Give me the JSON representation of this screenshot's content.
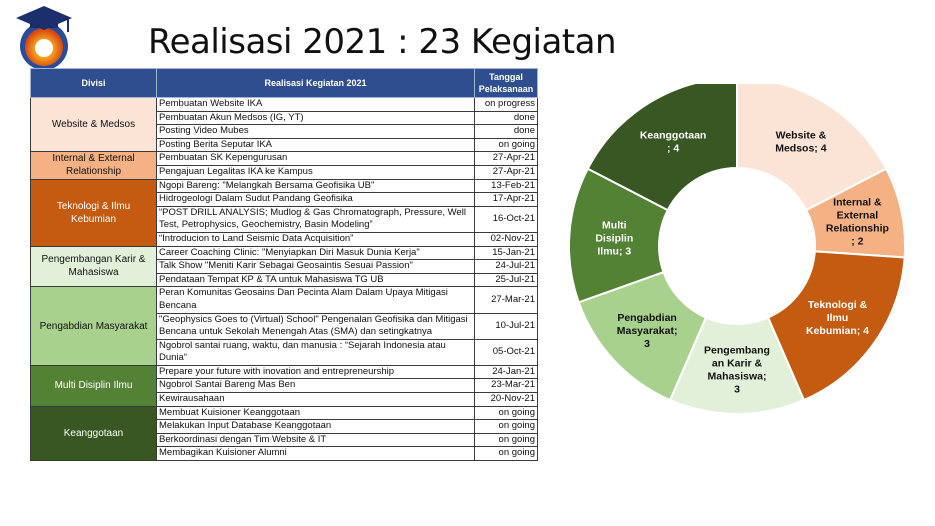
{
  "title": "Realisasi 2021 : 23 Kegiatan",
  "logo": {
    "icon": "graduation-cap-globe-logo"
  },
  "table": {
    "headers": [
      "Divisi",
      "Realisasi Kegiatan 2021",
      "Tanggal Pelaksanaan"
    ],
    "groups": [
      {
        "divisi": "Website & Medsos",
        "color": "#fbe3d6",
        "text_color": "#111111",
        "rows": [
          {
            "activity": "Pembuatan Website IKA",
            "date": "on progress"
          },
          {
            "activity": "Pembuatan Akun Medsos (IG, YT)",
            "date": "done"
          },
          {
            "activity": "Posting Video Mubes",
            "date": "done"
          },
          {
            "activity": "Posting Berita Seputar IKA",
            "date": "on going"
          }
        ]
      },
      {
        "divisi": "Internal & External Relationship",
        "color": "#f4b183",
        "text_color": "#111111",
        "rows": [
          {
            "activity": "Pembuatan SK Kepengurusan",
            "date": "27-Apr-21"
          },
          {
            "activity": "Pengajuan Legalitas IKA ke Kampus",
            "date": "27-Apr-21"
          }
        ]
      },
      {
        "divisi": "Teknologi & Ilmu Kebumian",
        "color": "#c55a11",
        "text_color": "#ffffff",
        "rows": [
          {
            "activity": "Ngopi Bareng: \"Melangkah Bersama Geofisika UB\"",
            "date": "13-Feb-21"
          },
          {
            "activity": "Hidrogeologi Dalam Sudut Pandang Geofisika",
            "date": "17-Apr-21"
          },
          {
            "activity": "“POST DRILL ANALYSIS;  Mudlog & Gas Chromatograph, Pressure, Well Test, Petrophysics, Geochemistry, Basin Modeling”",
            "date": "16-Oct-21"
          },
          {
            "activity": "“Introducion to Land Seismic Data Acquisition”",
            "date": "02-Nov-21"
          }
        ]
      },
      {
        "divisi": "Pengembangan Karir & Mahasiswa",
        "color": "#e2f0d9",
        "text_color": "#111111",
        "rows": [
          {
            "activity": "Career Coaching Clinic: \"Menyiapkan Diri Masuk Dunia Kerja\"",
            "date": "15-Jan-21"
          },
          {
            "activity": "Talk Show \"Meniti Karir Sebagai Geosaintis Sesuai Passion\"",
            "date": "24-Jul-21"
          },
          {
            "activity": "Pendataan Tempat KP & TA untuk Mahasiswa TG UB",
            "date": "25-Jul-21"
          }
        ]
      },
      {
        "divisi": "Pengabdian Masyarakat",
        "color": "#a9d18e",
        "text_color": "#111111",
        "rows": [
          {
            "activity": "Peran Komunitas Geosains Dan Pecinta Alam Dalam Upaya Mitigasi Bencana",
            "date": "27-Mar-21"
          },
          {
            "activity": "\"Geophysics Goes to (Virtual) School\" Pengenalan Geofisika dan Mitigasi Bencana untuk Sekolah Menengah Atas (SMA) dan setingkatnya",
            "date": "10-Jul-21"
          },
          {
            "activity": "Ngobrol santai ruang, waktu, dan manusia : “Sejarah Indonesia atau Dunia“",
            "date": "05-Oct-21"
          }
        ]
      },
      {
        "divisi": "Multi Disiplin Ilmu",
        "color": "#548235",
        "text_color": "#ffffff",
        "rows": [
          {
            "activity": "Prepare your future with inovation and entrepreneurship",
            "date": "24-Jan-21"
          },
          {
            "activity": "Ngobrol Santai Bareng Mas Ben",
            "date": "23-Mar-21"
          },
          {
            "activity": "Kewirausahaan",
            "date": "20-Nov-21"
          }
        ]
      },
      {
        "divisi": "Keanggotaan",
        "color": "#385723",
        "text_color": "#ffffff",
        "rows": [
          {
            "activity": "Membuat Kuisioner Keanggotaan",
            "date": "on going"
          },
          {
            "activity": "Melakukan Input Database Keanggotaan",
            "date": "on going"
          },
          {
            "activity": "Berkoordinasi dengan Tim Website & IT",
            "date": "on going"
          },
          {
            "activity": "Membagikan Kuisioner Alumni",
            "date": "on going"
          }
        ]
      }
    ]
  },
  "chart_data": {
    "type": "pie",
    "variant": "donut",
    "categories": [
      "Website & Medsos",
      "Internal & External Relationship",
      "Teknologi & Ilmu Kebumian",
      "Pengembangan Karir & Mahasiswa",
      "Pengabdian Masyarakat",
      "Multi Disiplin Ilmu",
      "Keanggotaan"
    ],
    "values": [
      4,
      2,
      4,
      3,
      3,
      3,
      4
    ],
    "colors": [
      "#fbe3d6",
      "#f4b183",
      "#c55a11",
      "#e2f0d9",
      "#a9d18e",
      "#548235",
      "#385723"
    ],
    "label_colors": [
      "#111111",
      "#111111",
      "#ffffff",
      "#111111",
      "#111111",
      "#ffffff",
      "#ffffff"
    ],
    "data_labels": [
      [
        "Website &",
        "Medsos; 4"
      ],
      [
        "Internal &",
        "External",
        "Relationship",
        "; 2"
      ],
      [
        "Teknologi &",
        "Ilmu",
        "Kebumian; 4"
      ],
      [
        "Pengembang",
        "an Karir &",
        "Mahasiswa;",
        "3"
      ],
      [
        "Pengabdian",
        "Masyarakat;",
        "3"
      ],
      [
        "Multi",
        "Disiplin",
        "Ilmu; 3"
      ],
      [
        "Keanggotaan",
        "; 4"
      ]
    ]
  }
}
